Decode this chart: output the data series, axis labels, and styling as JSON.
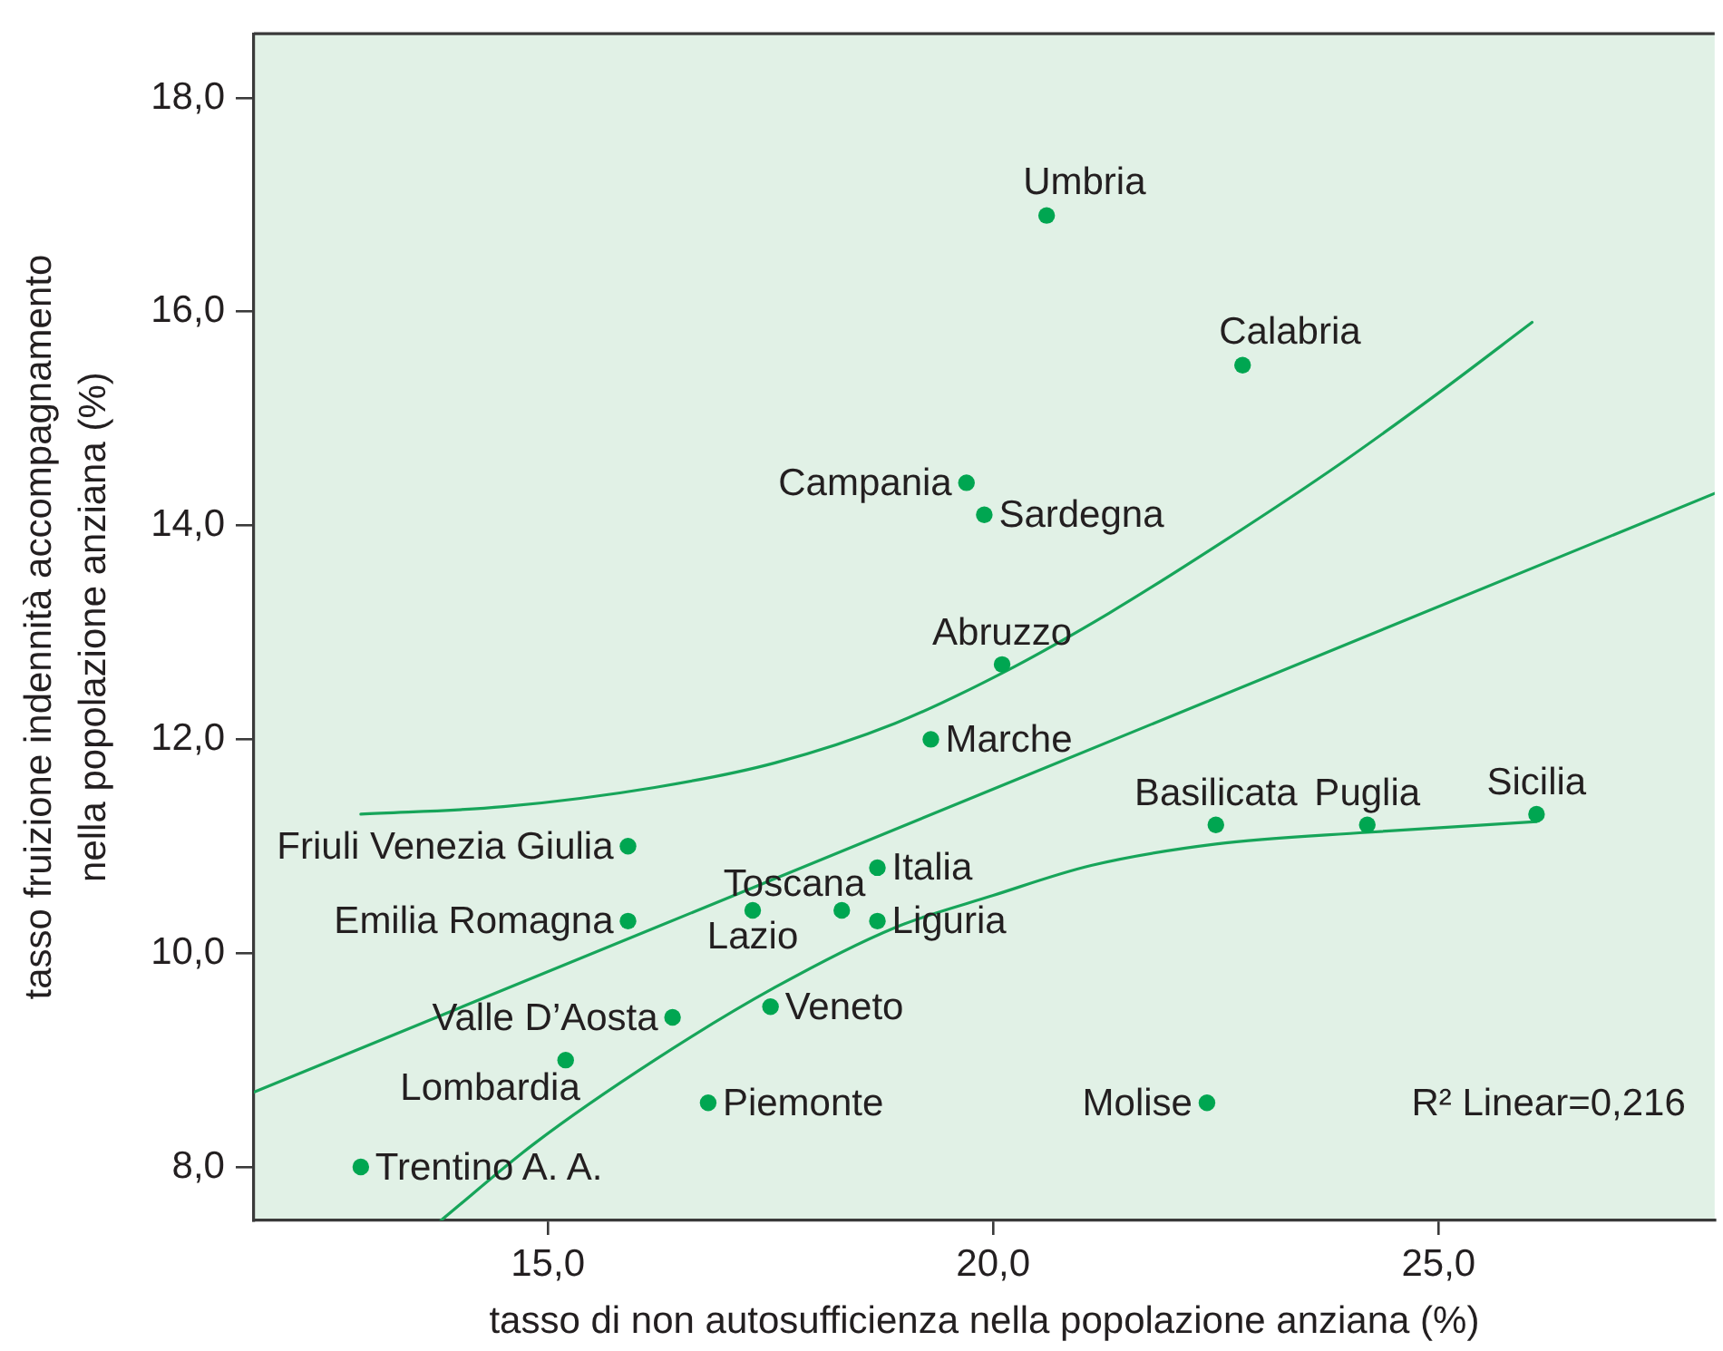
{
  "chart_data": {
    "type": "scatter",
    "xlabel": "tasso di non autosufficienza nella popolazione anziana (%)",
    "ylabel": "tasso fruizione indennità accompagnamento nella popolazione anziana (%)",
    "xlim": [
      11.7,
      28.1
    ],
    "xticks": [
      {
        "value": 15,
        "label": "15,0"
      },
      {
        "value": 20,
        "label": "20,0"
      },
      {
        "value": 25,
        "label": "25,0"
      }
    ],
    "ylim": [
      7.5,
      18.6
    ],
    "yticks": [
      {
        "value": 8,
        "label": "8,0"
      },
      {
        "value": 10,
        "label": "10,0"
      },
      {
        "value": 12,
        "label": "12,0"
      },
      {
        "value": 14,
        "label": "14,0"
      },
      {
        "value": 16,
        "label": "16,0"
      },
      {
        "value": 18,
        "label": "18,0"
      }
    ],
    "grid": false,
    "legend": false,
    "marker": "circle",
    "line_style": "solid",
    "series": [
      {
        "color": "#00a651",
        "x": [
          20.6,
          22.8,
          19.7,
          19.9,
          20.1,
          19.3,
          22.5,
          24.2,
          26.1,
          22.4,
          15.9,
          15.9,
          18.7,
          18.3,
          17.3,
          18.7,
          16.4,
          17.5,
          15.2,
          16.8,
          12.9
        ],
        "values": [
          16.9,
          15.5,
          14.4,
          14.1,
          12.7,
          12.0,
          11.2,
          11.2,
          11.3,
          8.6,
          11.0,
          10.3,
          10.8,
          10.4,
          10.4,
          10.3,
          9.4,
          9.5,
          9.0,
          8.6,
          8.0
        ]
      },
      {
        "type": "line",
        "marker": "none",
        "color": "#17a55a",
        "x": [
          11.7,
          28.1
        ],
        "values": [
          8.7,
          14.3
        ]
      },
      {
        "type": "line",
        "marker": "none",
        "color": "#17a55a",
        "x": [
          12.9,
          14.5,
          16.2,
          17.55,
          18.9,
          20.1,
          21.3,
          22.6,
          23.9,
          25.0,
          26.05
        ],
        "values": [
          11.3,
          11.37,
          11.55,
          11.78,
          12.15,
          12.62,
          13.18,
          13.86,
          14.58,
          15.24,
          15.9
        ]
      },
      {
        "type": "line",
        "marker": "none",
        "color": "#17a55a",
        "x": [
          13.8,
          14.85,
          16.2,
          17.55,
          18.9,
          20.0,
          21.1,
          22.5,
          24.2,
          26.1
        ],
        "values": [
          7.5,
          8.22,
          9.0,
          9.68,
          10.24,
          10.54,
          10.82,
          11.02,
          11.13,
          11.23
        ]
      }
    ],
    "annotations": [
      {
        "text": "Umbria",
        "x": 20.6,
        "y": 16.9
      },
      {
        "text": "Calabria",
        "x": 22.8,
        "y": 15.5
      },
      {
        "text": "Campania",
        "x": 19.7,
        "y": 14.4
      },
      {
        "text": "Sardegna",
        "x": 19.9,
        "y": 14.1
      },
      {
        "text": "Abruzzo",
        "x": 20.1,
        "y": 12.7
      },
      {
        "text": "Marche",
        "x": 19.3,
        "y": 12.0
      },
      {
        "text": "Basilicata",
        "x": 22.5,
        "y": 11.2
      },
      {
        "text": "Puglia",
        "x": 24.2,
        "y": 11.2
      },
      {
        "text": "Sicilia",
        "x": 26.1,
        "y": 11.3
      },
      {
        "text": "Molise",
        "x": 22.4,
        "y": 8.6
      },
      {
        "text": "Friuli Venezia Giulia",
        "x": 15.9,
        "y": 11.0
      },
      {
        "text": "Emilia Romagna",
        "x": 15.9,
        "y": 10.3
      },
      {
        "text": "Italia",
        "x": 18.7,
        "y": 10.8
      },
      {
        "text": "Toscana",
        "x": 18.3,
        "y": 10.4
      },
      {
        "text": "Lazio",
        "x": 17.3,
        "y": 10.4
      },
      {
        "text": "Liguria",
        "x": 18.7,
        "y": 10.3
      },
      {
        "text": "Valle D’Aosta",
        "x": 16.4,
        "y": 9.4
      },
      {
        "text": "Veneto",
        "x": 17.5,
        "y": 9.5
      },
      {
        "text": "Lombardia",
        "x": 15.2,
        "y": 9.0
      },
      {
        "text": "Piemonte",
        "x": 16.8,
        "y": 8.6
      },
      {
        "text": "Trentino A. A.",
        "x": 12.9,
        "y": 8.0
      },
      "R² Linear=0,216"
    ]
  }
}
